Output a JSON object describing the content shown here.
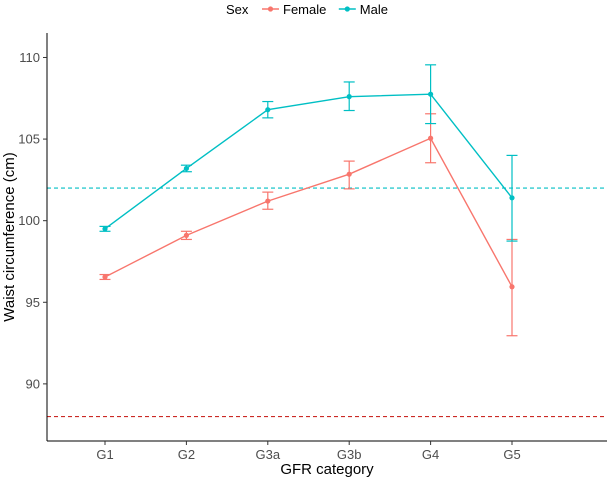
{
  "chart_data": {
    "type": "line",
    "xlabel": "GFR category",
    "ylabel": "Waist circumference (cm)",
    "categories": [
      "G1",
      "G2",
      "G3a",
      "G3b",
      "G4",
      "G5"
    ],
    "ylim": [
      86.5,
      111.5
    ],
    "yticks": [
      90,
      95,
      100,
      105,
      110
    ],
    "legend": {
      "title": "Sex",
      "position": "top"
    },
    "series": [
      {
        "name": "Female",
        "color": "#F8766D",
        "values": [
          96.55,
          99.1,
          101.2,
          102.85,
          105.05,
          95.95
        ],
        "lower": [
          96.4,
          98.85,
          100.7,
          101.95,
          103.55,
          92.95
        ],
        "upper": [
          96.7,
          99.35,
          101.75,
          103.65,
          106.55,
          98.85
        ]
      },
      {
        "name": "Male",
        "color": "#00BFC4",
        "values": [
          99.5,
          103.2,
          106.8,
          107.6,
          107.75,
          101.4
        ],
        "lower": [
          99.35,
          103.0,
          106.3,
          106.75,
          105.95,
          98.75
        ],
        "upper": [
          99.65,
          103.4,
          107.3,
          108.5,
          109.55,
          104.0
        ]
      }
    ],
    "reference_lines": [
      {
        "y": 102,
        "color": "#00BFC4"
      },
      {
        "y": 88,
        "color": "#CB2A25"
      }
    ]
  }
}
